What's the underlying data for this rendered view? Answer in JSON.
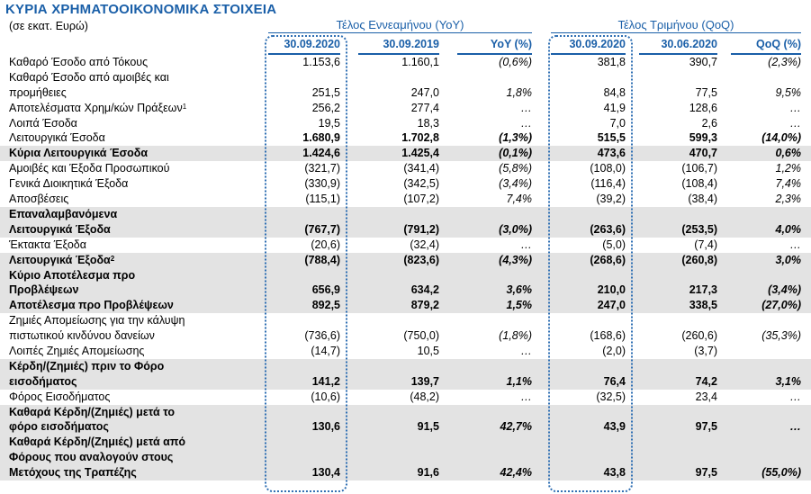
{
  "title": "ΚΥΡΙΑ ΧΡΗΜΑΤΟΟΙΚΟΝΟΜΙΚΑ ΣΤΟΙΧΕΙΑ",
  "subtitle": "(σε εκατ. Ευρώ)",
  "groups": {
    "yoy": "Τέλος Εννεαμήνου (YoY)",
    "qoq": "Τέλος Τριμήνου (QoQ)"
  },
  "columns": [
    "30.09.2020",
    "30.09.2019",
    "YoY (%)",
    "30.09.2020",
    "30.06.2020",
    "QoQ (%)"
  ],
  "rows": [
    {
      "lines": [
        "Καθαρό Έσοδο από Τόκους"
      ],
      "sup": "",
      "bold": false,
      "shaded": false,
      "values": [
        "1.153,6",
        "1.160,1",
        "(0,6%)",
        "381,8",
        "390,7",
        "(2,3%)"
      ]
    },
    {
      "lines": [
        "Καθαρό Έσοδο από αμοιβές και",
        "προμήθειες"
      ],
      "sup": "",
      "bold": false,
      "shaded": false,
      "values": [
        "251,5",
        "247,0",
        "1,8%",
        "84,8",
        "77,5",
        "9,5%"
      ]
    },
    {
      "lines": [
        "Αποτελέσματα Χρημ/κών Πράξεων"
      ],
      "sup": "1",
      "bold": false,
      "shaded": false,
      "values": [
        "256,2",
        "277,4",
        "…",
        "41,9",
        "128,6",
        "…"
      ]
    },
    {
      "lines": [
        "Λοιπά Έσοδα"
      ],
      "sup": "",
      "bold": false,
      "shaded": false,
      "values": [
        "19,5",
        "18,3",
        "…",
        "7,0",
        "2,6",
        "…"
      ]
    },
    {
      "lines": [
        "Λειτουργικά Έσοδα"
      ],
      "sup": "",
      "bold": false,
      "shaded": false,
      "values": [
        "1.680,9",
        "1.702,8",
        "(1,3%)",
        "515,5",
        "599,3",
        "(14,0%)"
      ],
      "boldValues": true
    },
    {
      "lines": [
        "Κύρια Λειτουργικά Έσοδα"
      ],
      "sup": "",
      "bold": true,
      "shaded": true,
      "values": [
        "1.424,6",
        "1.425,4",
        "(0,1%)",
        "473,6",
        "470,7",
        "0,6%"
      ]
    },
    {
      "lines": [
        "Αμοιβές και Έξοδα Προσωπικού"
      ],
      "sup": "",
      "bold": false,
      "shaded": false,
      "values": [
        "(321,7)",
        "(341,4)",
        "(5,8%)",
        "(108,0)",
        "(106,7)",
        "1,2%"
      ]
    },
    {
      "lines": [
        "Γενικά Διοικητικά Έξοδα"
      ],
      "sup": "",
      "bold": false,
      "shaded": false,
      "values": [
        "(330,9)",
        "(342,5)",
        "(3,4%)",
        "(116,4)",
        "(108,4)",
        "7,4%"
      ]
    },
    {
      "lines": [
        "Αποσβέσεις"
      ],
      "sup": "",
      "bold": false,
      "shaded": false,
      "values": [
        "(115,1)",
        "(107,2)",
        "7,4%",
        "(39,2)",
        "(38,4)",
        "2,3%"
      ]
    },
    {
      "lines": [
        "Επαναλαμβανόμενα",
        "Λειτουργικά Έξοδα"
      ],
      "sup": "",
      "bold": true,
      "shaded": true,
      "values": [
        "(767,7)",
        "(791,2)",
        "(3,0%)",
        "(263,6)",
        "(253,5)",
        "4,0%"
      ]
    },
    {
      "lines": [
        "Έκτακτα Έξοδα"
      ],
      "sup": "",
      "bold": false,
      "shaded": false,
      "values": [
        "(20,6)",
        "(32,4)",
        "…",
        "(5,0)",
        "(7,4)",
        "…"
      ]
    },
    {
      "lines": [
        "Λειτουργικά Έξοδα"
      ],
      "sup": "2",
      "bold": true,
      "shaded": true,
      "values": [
        "(788,4)",
        "(823,6)",
        "(4,3%)",
        "(268,6)",
        "(260,8)",
        "3,0%"
      ]
    },
    {
      "lines": [
        "Κύριο Αποτέλεσμα προ",
        "Προβλέψεων"
      ],
      "sup": "",
      "bold": true,
      "shaded": true,
      "values": [
        "656,9",
        "634,2",
        "3,6%",
        "210,0",
        "217,3",
        "(3,4%)"
      ]
    },
    {
      "lines": [
        "Αποτέλεσμα προ Προβλέψεων"
      ],
      "sup": "",
      "bold": true,
      "shaded": true,
      "values": [
        "892,5",
        "879,2",
        "1,5%",
        "247,0",
        "338,5",
        "(27,0%)"
      ]
    },
    {
      "lines": [
        "Ζημιές Απομείωσης για την κάλυψη",
        "πιστωτικού κινδύνου δανείων"
      ],
      "sup": "",
      "bold": false,
      "shaded": false,
      "values": [
        "(736,6)",
        "(750,0)",
        "(1,8%)",
        "(168,6)",
        "(260,6)",
        "(35,3%)"
      ]
    },
    {
      "lines": [
        "Λοιπές Ζημιές Απομείωσης"
      ],
      "sup": "",
      "bold": false,
      "shaded": false,
      "values": [
        "(14,7)",
        "10,5",
        "…",
        "(2,0)",
        "(3,7)",
        ""
      ]
    },
    {
      "lines": [
        "Κέρδη/(Ζημιές) πριν το Φόρο",
        "εισοδήματος"
      ],
      "sup": "",
      "bold": true,
      "shaded": true,
      "values": [
        "141,2",
        "139,7",
        "1,1%",
        "76,4",
        "74,2",
        "3,1%"
      ]
    },
    {
      "lines": [
        "Φόρος Εισοδήματος"
      ],
      "sup": "",
      "bold": false,
      "shaded": false,
      "values": [
        "(10,6)",
        "(48,2)",
        "…",
        "(32,5)",
        "23,4",
        "…"
      ]
    },
    {
      "lines": [
        "Καθαρά Κέρδη/(Ζημιές) μετά το",
        "φόρο εισοδήματος"
      ],
      "sup": "",
      "bold": true,
      "shaded": true,
      "values": [
        "130,6",
        "91,5",
        "42,7%",
        "43,9",
        "97,5",
        "…"
      ]
    },
    {
      "lines": [
        "Καθαρά Κέρδη/(Ζημιές) μετά από",
        "Φόρους που αναλογούν στους",
        "Μετόχους της Τραπέζης"
      ],
      "sup": "",
      "bold": true,
      "shaded": true,
      "values": [
        "130,4",
        "91,6",
        "42,4%",
        "43,8",
        "97,5",
        "(55,0%)"
      ]
    }
  ],
  "colors": {
    "accent": "#1a5fa8",
    "shade": "#e3e3e3",
    "dots": "#2f6fb3"
  }
}
